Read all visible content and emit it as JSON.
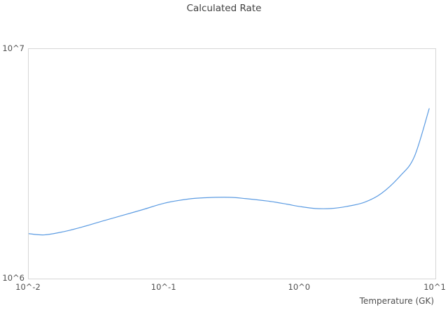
{
  "title": "Calculated Rate",
  "x_axis": {
    "label": "Temperature (GK)",
    "ticks": [
      {
        "label": "10^-2",
        "value": 0.01
      },
      {
        "label": "10^-1",
        "value": 0.1
      },
      {
        "label": "10^0",
        "value": 1
      },
      {
        "label": "10^1",
        "value": 10
      }
    ]
  },
  "y_axis": {
    "ticks": [
      {
        "label": "10^6",
        "value": 1000000
      },
      {
        "label": "10^7",
        "value": 10000000
      }
    ]
  },
  "chart_data": {
    "type": "line",
    "title": "Calculated Rate",
    "xlabel": "Temperature (GK)",
    "ylabel": "",
    "x_scale": "log",
    "y_scale": "log",
    "xlim": [
      0.01,
      10
    ],
    "ylim": [
      1000000,
      10000000
    ],
    "grid": false,
    "legend": false,
    "series": [
      {
        "name": "Calculated Rate",
        "color": "#5b9be2",
        "x": [
          0.01,
          0.013,
          0.018,
          0.025,
          0.035,
          0.05,
          0.07,
          0.1,
          0.15,
          0.2,
          0.3,
          0.4,
          0.6,
          0.8,
          1.0,
          1.3,
          1.7,
          2.2,
          3.0,
          4.0,
          5.5,
          7.0,
          9.0
        ],
        "y": [
          1570000,
          1550000,
          1600000,
          1680000,
          1780000,
          1890000,
          2000000,
          2130000,
          2220000,
          2250000,
          2260000,
          2230000,
          2170000,
          2110000,
          2060000,
          2020000,
          2020000,
          2060000,
          2150000,
          2350000,
          2800000,
          3400000,
          5500000
        ]
      }
    ]
  },
  "colors": {
    "background": "#ffffff",
    "plot_border": "#d6d6d6",
    "line": "#5b9be2",
    "title_text": "#3f3f3f",
    "tick_text": "#4f4f4f"
  }
}
